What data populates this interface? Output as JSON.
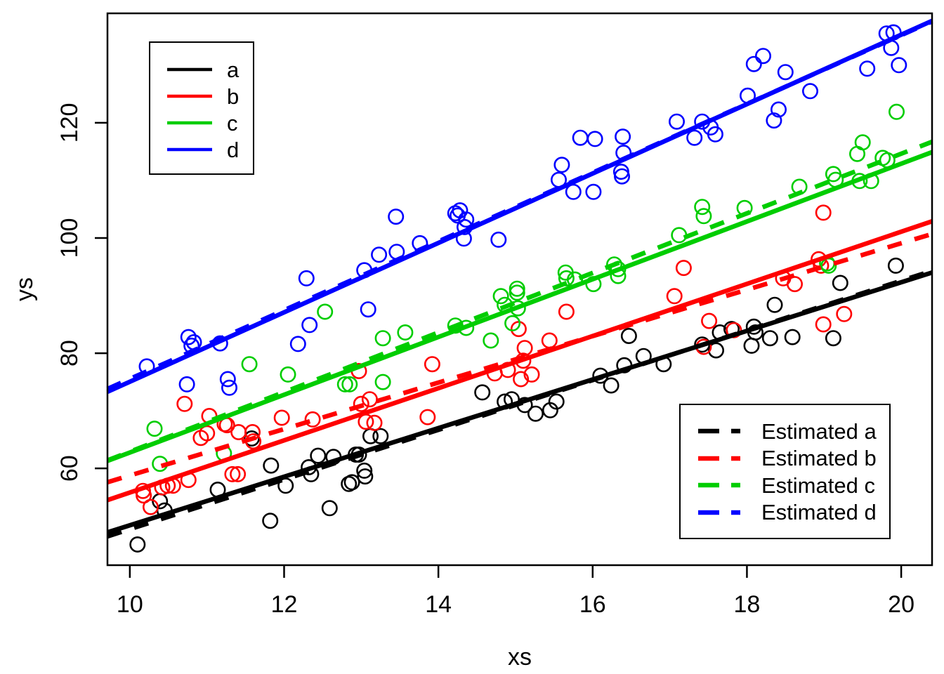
{
  "chart_data": {
    "type": "scatter",
    "title": "",
    "xlabel": "xs",
    "ylabel": "ys",
    "x_ticks": [
      10,
      12,
      14,
      16,
      18,
      20
    ],
    "y_ticks": [
      60,
      80,
      100,
      120
    ],
    "xlim": [
      9.71,
      20.4
    ],
    "ylim": [
      43.2,
      139.0
    ],
    "grid": false,
    "point_style": "open-circle",
    "series": [
      {
        "name": "a",
        "color": "#000000",
        "points": [
          [
            10.1,
            46.8
          ],
          [
            10.39,
            54.3
          ],
          [
            10.45,
            52.7
          ],
          [
            11.14,
            56.3
          ],
          [
            11.58,
            65.2
          ],
          [
            11.82,
            50.9
          ],
          [
            11.83,
            60.5
          ],
          [
            12.02,
            57.0
          ],
          [
            12.32,
            60.2
          ],
          [
            12.35,
            59.0
          ],
          [
            12.44,
            62.2
          ],
          [
            12.59,
            53.1
          ],
          [
            12.64,
            62.0
          ],
          [
            12.84,
            57.3
          ],
          [
            12.88,
            57.6
          ],
          [
            12.93,
            62.4
          ],
          [
            12.97,
            62.4
          ],
          [
            13.04,
            59.6
          ],
          [
            13.05,
            58.6
          ],
          [
            13.12,
            65.6
          ],
          [
            13.25,
            65.6
          ],
          [
            14.57,
            73.2
          ],
          [
            14.86,
            71.6
          ],
          [
            14.95,
            72.0
          ],
          [
            15.12,
            71.0
          ],
          [
            15.26,
            69.5
          ],
          [
            15.45,
            70.1
          ],
          [
            15.53,
            71.6
          ],
          [
            16.1,
            76.1
          ],
          [
            16.24,
            74.4
          ],
          [
            16.41,
            77.9
          ],
          [
            16.47,
            83.0
          ],
          [
            16.66,
            79.5
          ],
          [
            16.92,
            78.1
          ],
          [
            17.42,
            81.5
          ],
          [
            17.6,
            80.5
          ],
          [
            17.65,
            83.6
          ],
          [
            17.8,
            84.2
          ],
          [
            18.06,
            81.3
          ],
          [
            18.09,
            84.6
          ],
          [
            18.11,
            83.6
          ],
          [
            18.3,
            82.6
          ],
          [
            18.36,
            88.4
          ],
          [
            18.59,
            82.8
          ],
          [
            19.12,
            82.6
          ],
          [
            19.21,
            92.2
          ],
          [
            19.93,
            95.2
          ]
        ]
      },
      {
        "name": "b",
        "color": "#FF0000",
        "points": [
          [
            10.17,
            56.1
          ],
          [
            10.18,
            55.3
          ],
          [
            10.27,
            53.3
          ],
          [
            10.42,
            56.7
          ],
          [
            10.49,
            57.0
          ],
          [
            10.56,
            57.0
          ],
          [
            10.71,
            71.2
          ],
          [
            10.76,
            58.0
          ],
          [
            10.92,
            65.3
          ],
          [
            11.0,
            66.1
          ],
          [
            11.03,
            69.1
          ],
          [
            11.23,
            67.7
          ],
          [
            11.26,
            67.5
          ],
          [
            11.33,
            59.0
          ],
          [
            11.4,
            59.0
          ],
          [
            11.41,
            66.3
          ],
          [
            11.59,
            66.3
          ],
          [
            11.6,
            64.7
          ],
          [
            11.97,
            68.8
          ],
          [
            12.37,
            68.5
          ],
          [
            12.97,
            76.9
          ],
          [
            13.0,
            71.2
          ],
          [
            13.06,
            68.1
          ],
          [
            13.11,
            72.0
          ],
          [
            13.17,
            67.9
          ],
          [
            13.86,
            68.9
          ],
          [
            13.92,
            78.1
          ],
          [
            14.73,
            76.5
          ],
          [
            14.9,
            77.1
          ],
          [
            15.04,
            84.2
          ],
          [
            15.07,
            75.5
          ],
          [
            15.1,
            78.7
          ],
          [
            15.12,
            80.9
          ],
          [
            15.21,
            76.3
          ],
          [
            15.44,
            82.2
          ],
          [
            15.66,
            87.2
          ],
          [
            17.06,
            89.9
          ],
          [
            17.18,
            94.8
          ],
          [
            17.44,
            81.1
          ],
          [
            17.51,
            85.6
          ],
          [
            17.83,
            84.0
          ],
          [
            18.47,
            93.0
          ],
          [
            18.62,
            92.0
          ],
          [
            18.93,
            96.3
          ],
          [
            18.96,
            95.2
          ],
          [
            18.99,
            104.4
          ],
          [
            18.99,
            85.0
          ],
          [
            19.26,
            86.8
          ]
        ]
      },
      {
        "name": "c",
        "color": "#00CD00",
        "points": [
          [
            10.32,
            66.9
          ],
          [
            10.39,
            60.8
          ],
          [
            11.22,
            62.6
          ],
          [
            11.55,
            78.1
          ],
          [
            12.05,
            76.3
          ],
          [
            12.53,
            87.2
          ],
          [
            12.79,
            74.6
          ],
          [
            12.85,
            74.6
          ],
          [
            13.28,
            75.0
          ],
          [
            13.28,
            82.6
          ],
          [
            13.57,
            83.6
          ],
          [
            14.22,
            84.8
          ],
          [
            14.36,
            84.4
          ],
          [
            14.68,
            82.2
          ],
          [
            14.81,
            89.9
          ],
          [
            14.86,
            88.4
          ],
          [
            14.96,
            85.2
          ],
          [
            15.02,
            90.5
          ],
          [
            15.02,
            91.2
          ],
          [
            15.03,
            87.8
          ],
          [
            15.65,
            94.0
          ],
          [
            15.66,
            93.0
          ],
          [
            15.77,
            92.8
          ],
          [
            16.01,
            92.0
          ],
          [
            16.28,
            95.4
          ],
          [
            16.33,
            94.6
          ],
          [
            16.33,
            93.4
          ],
          [
            17.12,
            100.5
          ],
          [
            17.42,
            105.4
          ],
          [
            17.44,
            103.8
          ],
          [
            17.97,
            105.2
          ],
          [
            18.68,
            108.9
          ],
          [
            19.04,
            95.6
          ],
          [
            19.06,
            95.2
          ],
          [
            19.12,
            111.1
          ],
          [
            19.15,
            110.1
          ],
          [
            19.43,
            114.6
          ],
          [
            19.46,
            109.9
          ],
          [
            19.5,
            116.6
          ],
          [
            19.61,
            109.9
          ],
          [
            19.76,
            113.9
          ],
          [
            19.82,
            113.5
          ],
          [
            19.94,
            121.9
          ]
        ]
      },
      {
        "name": "d",
        "color": "#0000FF",
        "points": [
          [
            10.22,
            77.7
          ],
          [
            10.74,
            74.6
          ],
          [
            10.76,
            82.8
          ],
          [
            10.8,
            81.3
          ],
          [
            10.83,
            81.9
          ],
          [
            11.17,
            81.7
          ],
          [
            11.27,
            75.5
          ],
          [
            11.29,
            74.0
          ],
          [
            12.18,
            81.6
          ],
          [
            12.29,
            93.0
          ],
          [
            12.33,
            84.9
          ],
          [
            13.04,
            94.4
          ],
          [
            13.09,
            87.6
          ],
          [
            13.23,
            97.1
          ],
          [
            13.45,
            103.7
          ],
          [
            13.46,
            97.6
          ],
          [
            13.76,
            99.1
          ],
          [
            14.22,
            104.3
          ],
          [
            14.25,
            103.9
          ],
          [
            14.28,
            104.8
          ],
          [
            14.33,
            99.9
          ],
          [
            14.34,
            101.9
          ],
          [
            14.36,
            103.2
          ],
          [
            14.78,
            99.7
          ],
          [
            15.56,
            110.1
          ],
          [
            15.6,
            112.7
          ],
          [
            15.75,
            108.0
          ],
          [
            15.84,
            117.4
          ],
          [
            16.01,
            108.0
          ],
          [
            16.03,
            117.2
          ],
          [
            16.37,
            111.5
          ],
          [
            16.38,
            110.7
          ],
          [
            16.39,
            117.6
          ],
          [
            16.4,
            114.8
          ],
          [
            17.09,
            120.2
          ],
          [
            17.32,
            117.4
          ],
          [
            17.42,
            120.2
          ],
          [
            17.53,
            119.2
          ],
          [
            17.59,
            118.0
          ],
          [
            18.01,
            124.7
          ],
          [
            18.09,
            130.2
          ],
          [
            18.21,
            131.6
          ],
          [
            18.35,
            120.4
          ],
          [
            18.41,
            122.3
          ],
          [
            18.5,
            128.8
          ],
          [
            18.82,
            125.5
          ],
          [
            19.56,
            129.4
          ],
          [
            19.81,
            135.5
          ],
          [
            19.87,
            133.0
          ],
          [
            19.9,
            135.7
          ],
          [
            19.97,
            130.0
          ]
        ]
      }
    ],
    "true_lines": [
      {
        "name": "a",
        "color": "#000000",
        "x1": 9.71,
        "y1": 48.9,
        "x2": 20.4,
        "y2": 94.0
      },
      {
        "name": "b",
        "color": "#FF0000",
        "x1": 9.71,
        "y1": 54.5,
        "x2": 20.4,
        "y2": 102.9
      },
      {
        "name": "c",
        "color": "#00CD00",
        "x1": 9.71,
        "y1": 61.3,
        "x2": 20.4,
        "y2": 114.9
      },
      {
        "name": "d",
        "color": "#0000FF",
        "x1": 9.71,
        "y1": 73.3,
        "x2": 20.4,
        "y2": 137.7
      }
    ],
    "estimated_lines": [
      {
        "name": "a",
        "color": "#000000",
        "x1": 9.71,
        "y1": 48.2,
        "x2": 20.4,
        "y2": 94.3
      },
      {
        "name": "b",
        "color": "#FF0000",
        "x1": 9.71,
        "y1": 57.6,
        "x2": 20.4,
        "y2": 100.7
      },
      {
        "name": "c",
        "color": "#00CD00",
        "x1": 9.71,
        "y1": 61.4,
        "x2": 20.4,
        "y2": 116.7
      },
      {
        "name": "d",
        "color": "#0000FF",
        "x1": 9.71,
        "y1": 73.8,
        "x2": 20.4,
        "y2": 137.6
      }
    ]
  },
  "legend_true": {
    "items": [
      {
        "label": "a",
        "color": "#000000"
      },
      {
        "label": "b",
        "color": "#FF0000"
      },
      {
        "label": "c",
        "color": "#00CD00"
      },
      {
        "label": "d",
        "color": "#0000FF"
      }
    ]
  },
  "legend_estimated": {
    "items": [
      {
        "label": "Estimated a",
        "color": "#000000"
      },
      {
        "label": "Estimated b",
        "color": "#FF0000"
      },
      {
        "label": "Estimated c",
        "color": "#00CD00"
      },
      {
        "label": "Estimated d",
        "color": "#0000FF"
      }
    ]
  }
}
